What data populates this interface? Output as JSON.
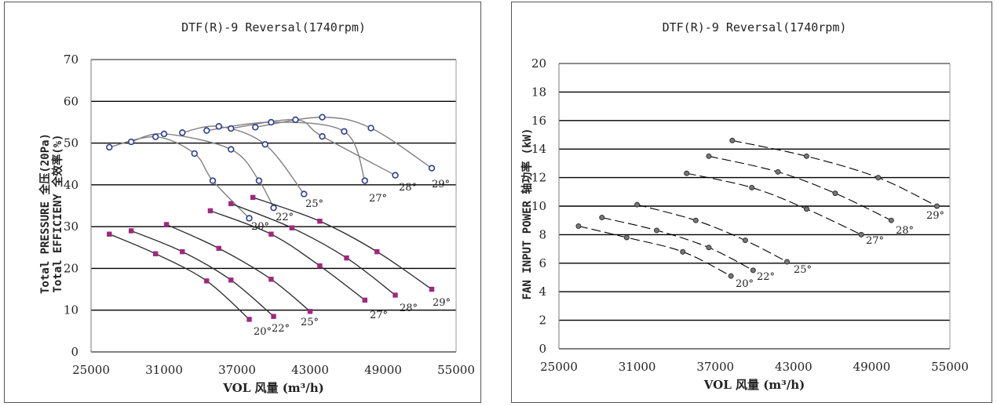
{
  "chart_data": [
    {
      "type": "line",
      "title": "DTF(R)-9 Reversal(1740rpm)",
      "xlabel": "VOL 风量 (m³/h)",
      "ylabel_lines": [
        "Total PRESSURE 全压(20Pa)",
        "Total EFFICIENY 全效率(%)"
      ],
      "xlim": [
        25000,
        55000
      ],
      "ylim": [
        0,
        70
      ],
      "xticks": [
        25000,
        31000,
        37000,
        43000,
        49000,
        55000
      ],
      "yticks": [
        0,
        10,
        20,
        30,
        40,
        50,
        60,
        70
      ],
      "grid": true,
      "curve_labels": [
        "20°",
        "22°",
        "25°",
        "27°",
        "28°",
        "29°"
      ],
      "efficiency_series": [
        {
          "name": "20°",
          "x": [
            26500,
            30300,
            33500,
            35000,
            38000
          ],
          "y": [
            49,
            51.5,
            47.5,
            41,
            32
          ]
        },
        {
          "name": "22°",
          "x": [
            28300,
            31000,
            36500,
            38800,
            40000
          ],
          "y": [
            50.3,
            52.2,
            48.5,
            41,
            34.5
          ]
        },
        {
          "name": "25°",
          "x": [
            32500,
            35500,
            39300,
            42500
          ],
          "y": [
            52.5,
            54,
            49.7,
            37.8
          ]
        },
        {
          "name": "27°",
          "x": [
            34500,
            39800,
            45800,
            47500
          ],
          "y": [
            53,
            55,
            52.8,
            41
          ]
        },
        {
          "name": "28°",
          "x": [
            36500,
            41800,
            44000,
            50000
          ],
          "y": [
            53.5,
            55.6,
            51.6,
            42.3
          ]
        },
        {
          "name": "29°",
          "x": [
            38500,
            44000,
            48000,
            53000
          ],
          "y": [
            53.8,
            56.2,
            53.6,
            44
          ]
        }
      ],
      "pressure_series": [
        {
          "name": "20°",
          "x": [
            26500,
            30300,
            34500,
            38000
          ],
          "y": [
            28.2,
            23.5,
            17,
            7.8
          ]
        },
        {
          "name": "22°",
          "x": [
            28300,
            32500,
            36500,
            40000
          ],
          "y": [
            29,
            24,
            17.2,
            8.5
          ]
        },
        {
          "name": "25°",
          "x": [
            31200,
            35500,
            39800,
            43000
          ],
          "y": [
            30.5,
            24.8,
            17.4,
            9.7
          ]
        },
        {
          "name": "27°",
          "x": [
            34800,
            39800,
            43800,
            47500
          ],
          "y": [
            33.8,
            28.2,
            20.6,
            12.4
          ]
        },
        {
          "name": "28°",
          "x": [
            36500,
            41500,
            46000,
            50000
          ],
          "y": [
            35.5,
            29.7,
            22.5,
            13.6
          ]
        },
        {
          "name": "29°",
          "x": [
            38300,
            43800,
            48500,
            53000
          ],
          "y": [
            37,
            31.3,
            24,
            15
          ]
        }
      ],
      "efficiency_color": "#2b3d8f",
      "pressure_color": "#a0287c",
      "curve_color": "#808080"
    },
    {
      "type": "line",
      "title": "DTF(R)-9 Reversal(1740rpm)",
      "xlabel": "VOL 风量 (m³/h)",
      "ylabel_lines": [
        "FAN INPUT POWER 轴功率 (kW)"
      ],
      "xlim": [
        25000,
        55000
      ],
      "ylim": [
        0,
        20
      ],
      "xticks": [
        25000,
        31000,
        37000,
        43000,
        49000,
        55000
      ],
      "yticks": [
        0,
        2,
        4,
        6,
        8,
        10,
        12,
        14,
        16,
        18,
        20
      ],
      "grid": true,
      "power_series": [
        {
          "name": "20°",
          "x": [
            26500,
            30200,
            34500,
            38200
          ],
          "y": [
            8.6,
            7.8,
            6.8,
            5.1
          ]
        },
        {
          "name": "22°",
          "x": [
            28300,
            32500,
            36500,
            39900
          ],
          "y": [
            9.2,
            8.3,
            7.1,
            5.5
          ]
        },
        {
          "name": "25°",
          "x": [
            31000,
            35500,
            39300,
            42500
          ],
          "y": [
            10.1,
            9.0,
            7.6,
            6.1
          ]
        },
        {
          "name": "27°",
          "x": [
            34800,
            39800,
            44000,
            48200
          ],
          "y": [
            12.3,
            11.3,
            9.8,
            8.0
          ]
        },
        {
          "name": "28°",
          "x": [
            36500,
            41800,
            46200,
            50500
          ],
          "y": [
            13.5,
            12.4,
            10.9,
            9.0
          ]
        },
        {
          "name": "29°",
          "x": [
            38300,
            44000,
            49500,
            54000
          ],
          "y": [
            14.6,
            13.5,
            12.0,
            10.0
          ]
        }
      ],
      "point_color": "#777777",
      "curve_color": "#000000"
    }
  ]
}
